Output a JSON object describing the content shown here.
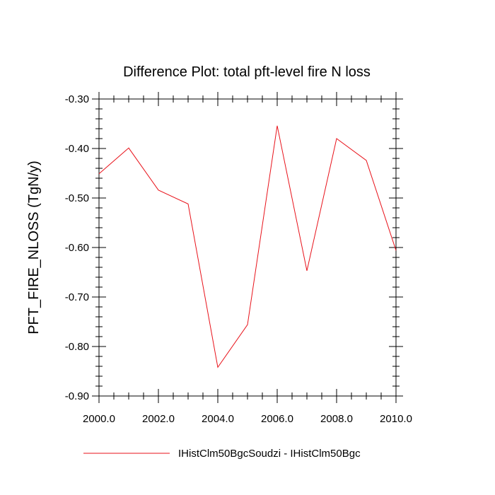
{
  "chart_data": {
    "type": "line",
    "title": "Difference Plot: total pft-level fire N loss",
    "xlabel": "",
    "ylabel": "PFT_FIRE_NLOSS  (TgN/y)",
    "xlim": [
      2000,
      2010
    ],
    "ylim": [
      -0.9,
      -0.3
    ],
    "x_ticks": [
      "2000.0",
      "2002.0",
      "2004.0",
      "2006.0",
      "2008.0",
      "2010.0"
    ],
    "y_ticks": [
      "-0.30",
      "-0.40",
      "-0.50",
      "-0.60",
      "-0.70",
      "-0.80",
      "-0.90"
    ],
    "grid": false,
    "legend_position": "bottom",
    "series": [
      {
        "name": "IHistClm50BgcSoudzi - IHistClm50Bgc",
        "color": "#e8121a",
        "x": [
          2000,
          2001,
          2002,
          2003,
          2004,
          2005,
          2006,
          2007,
          2008,
          2009,
          2010
        ],
        "y": [
          -0.451,
          -0.399,
          -0.484,
          -0.512,
          -0.842,
          -0.756,
          -0.354,
          -0.647,
          -0.38,
          -0.424,
          -0.606
        ]
      }
    ]
  }
}
